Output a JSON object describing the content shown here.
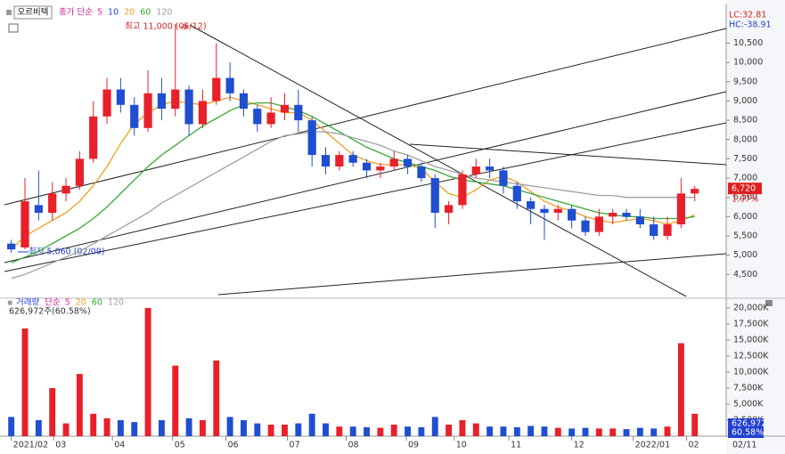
{
  "chart_data": [
    {
      "type": "candlestick",
      "title": "오르비텍",
      "legend_prefix": "종가 단순",
      "legend": [
        {
          "name": "5",
          "color": "#e0309a"
        },
        {
          "name": "10",
          "color": "#2040d0"
        }
      ],
      "x": [
        0,
        1,
        2,
        3,
        4,
        5,
        6,
        7,
        8,
        9,
        10,
        11,
        12,
        13,
        14,
        15,
        16,
        17,
        18,
        19,
        20,
        21,
        22,
        23,
        24,
        25,
        26,
        27,
        28,
        29,
        30,
        31,
        32,
        33,
        34,
        35,
        36,
        37,
        38,
        39,
        40,
        41,
        42,
        43,
        44,
        45,
        46,
        47,
        48,
        49,
        50
      ],
      "open": [
        5300,
        5200,
        6300,
        6100,
        6600,
        6800,
        7500,
        8600,
        9300,
        8900,
        8300,
        9200,
        8800,
        9300,
        8400,
        9000,
        9600,
        9200,
        8800,
        8400,
        8700,
        8900,
        8500,
        7600,
        7300,
        7600,
        7400,
        7200,
        7300,
        7500,
        7300,
        7000,
        6100,
        6300,
        7100,
        7300,
        7200,
        6800,
        6400,
        6200,
        6100,
        6200,
        5900,
        5600,
        6000,
        6100,
        6000,
        5800,
        5500,
        5800,
        6600
      ],
      "high": [
        5400,
        7000,
        7200,
        6900,
        7000,
        7700,
        9000,
        9600,
        9600,
        9100,
        9800,
        9600,
        11000,
        9400,
        9300,
        10500,
        10000,
        9300,
        8900,
        9100,
        9200,
        9300,
        8600,
        7800,
        7700,
        7700,
        7500,
        7400,
        7700,
        7600,
        7400,
        7100,
        6400,
        7200,
        7500,
        7500,
        7300,
        6900,
        6500,
        6300,
        6300,
        6300,
        6000,
        6200,
        6200,
        6200,
        6200,
        6000,
        6000,
        7000,
        6800
      ],
      "low": [
        5060,
        5150,
        5900,
        5900,
        6400,
        6700,
        7400,
        8400,
        8700,
        8100,
        8200,
        8500,
        8600,
        8100,
        8300,
        8900,
        9000,
        8600,
        8200,
        8300,
        8500,
        8200,
        7300,
        7100,
        7200,
        7300,
        7000,
        7000,
        7200,
        7100,
        6900,
        5700,
        5800,
        6200,
        7000,
        7000,
        6600,
        6200,
        5800,
        5400,
        5900,
        5700,
        5500,
        5500,
        5800,
        5900,
        5700,
        5400,
        5400,
        5700,
        6400
      ],
      "close": [
        5150,
        6400,
        6100,
        6600,
        6800,
        7500,
        8600,
        9300,
        8900,
        8300,
        9200,
        8800,
        9300,
        8400,
        9000,
        9600,
        9200,
        8800,
        8400,
        8700,
        8900,
        8500,
        7600,
        7300,
        7600,
        7400,
        7200,
        7300,
        7500,
        7300,
        7000,
        6100,
        6300,
        7100,
        7300,
        7200,
        6800,
        6400,
        6200,
        6100,
        6200,
        5900,
        5600,
        6000,
        6100,
        6000,
        5800,
        5500,
        5800,
        6600,
        6720
      ],
      "up_color": "#e8202a",
      "down_color": "#1f4fd0",
      "series": [
        {
          "name": "20",
          "color": "#f0a020",
          "values": [
            5150,
            5500,
            5700,
            5900,
            6100,
            6400,
            6800,
            7300,
            7900,
            8400,
            8700,
            8900,
            9000,
            8950,
            8900,
            9000,
            9100,
            9000,
            8900,
            8800,
            8700,
            8700,
            8500,
            8200,
            7900,
            7600,
            7450,
            7350,
            7350,
            7350,
            7250,
            6900,
            6600,
            6500,
            6700,
            6950,
            7050,
            6900,
            6650,
            6400,
            6250,
            6150,
            6000,
            5900,
            5850,
            5900,
            5950,
            5900,
            5800,
            5900,
            6050
          ]
        },
        {
          "name": "60",
          "color": "#3aa83a",
          "values": [
            4800,
            4950,
            5100,
            5300,
            5500,
            5700,
            5950,
            6250,
            6600,
            6950,
            7300,
            7600,
            7850,
            8100,
            8350,
            8550,
            8750,
            8900,
            8950,
            8950,
            8850,
            8750,
            8600,
            8400,
            8200,
            8000,
            7800,
            7650,
            7500,
            7400,
            7300,
            7200,
            7050,
            6950,
            6900,
            6850,
            6800,
            6700,
            6600,
            6500,
            6400,
            6300,
            6200,
            6100,
            6050,
            6000,
            6000,
            5950,
            5950,
            5950,
            6000
          ]
        },
        {
          "name": "120",
          "color": "#a0a0a0",
          "values": [
            4400,
            4500,
            4650,
            4800,
            4950,
            5100,
            5300,
            5500,
            5700,
            5900,
            6100,
            6350,
            6550,
            6750,
            6950,
            7150,
            7350,
            7550,
            7750,
            7950,
            8100,
            8150,
            8200,
            8200,
            8150,
            8050,
            7950,
            7850,
            7700,
            7600,
            7450,
            7300,
            7200,
            7100,
            7000,
            6950,
            6900,
            6850,
            6800,
            6750,
            6700,
            6650,
            6600,
            6550,
            6550,
            6500,
            6500,
            6500,
            6500,
            6500,
            6500
          ]
        }
      ],
      "xlim": [
        -0.5,
        52.3
      ],
      "ylim": [
        3930,
        11390
      ],
      "yticks": [
        {
          "value": 4500,
          "label": "4,500"
        },
        {
          "value": 5000,
          "label": "5,000"
        },
        {
          "value": 5500,
          "label": "5,500"
        },
        {
          "value": 6000,
          "label": "6,000"
        },
        {
          "value": 6500,
          "label": "6,500"
        },
        {
          "value": 7000,
          "label": "7,000"
        },
        {
          "value": 7500,
          "label": "7,500"
        },
        {
          "value": 8000,
          "label": "8,000"
        },
        {
          "value": 8500,
          "label": "8,500"
        },
        {
          "value": 9000,
          "label": "9,000"
        },
        {
          "value": 9500,
          "label": "9,500"
        },
        {
          "value": 10000,
          "label": "10,000"
        },
        {
          "value": 10500,
          "label": "10,500"
        }
      ],
      "high_label": "최고 11,000 (05/12)",
      "low_label": "최저 5,060 (02/09)",
      "lc": "LC:32.81",
      "hc": "HC:-38.91",
      "last_price": {
        "value": 6720,
        "label": "6,720"
      },
      "change": "1.97%"
    },
    {
      "type": "bar",
      "title": "거래량",
      "legend_prefix": "단순",
      "legend": [
        {
          "name": "5",
          "color": "#e0309a"
        },
        {
          "name": "20",
          "color": "#f0a020"
        },
        {
          "name": "60",
          "color": "#3aa83a"
        },
        {
          "name": "120",
          "color": "#a0a0a0"
        }
      ],
      "subtitle": "626,972주(60.58%)",
      "x": [
        0,
        1,
        2,
        3,
        4,
        5,
        6,
        7,
        8,
        9,
        10,
        11,
        12,
        13,
        14,
        15,
        16,
        17,
        18,
        19,
        20,
        21,
        22,
        23,
        24,
        25,
        26,
        27,
        28,
        29,
        30,
        31,
        32,
        33,
        34,
        35,
        36,
        37,
        38,
        39,
        40,
        41,
        42,
        43,
        44,
        45,
        46,
        47,
        48,
        49,
        50
      ],
      "values": [
        3000,
        16800,
        2500,
        7500,
        2000,
        9700,
        3500,
        2800,
        2500,
        2200,
        20000,
        2500,
        11000,
        2800,
        2500,
        11800,
        3000,
        2500,
        2000,
        1800,
        1800,
        2000,
        3500,
        2000,
        1500,
        1500,
        1400,
        1300,
        1800,
        1500,
        1400,
        3000,
        1800,
        2500,
        2000,
        1500,
        1500,
        1400,
        1600,
        1500,
        1300,
        1200,
        1300,
        1200,
        1200,
        1100,
        1300,
        1200,
        1500,
        14500,
        3500
      ],
      "xlim": [
        -0.5,
        52.3
      ],
      "ylim": [
        0,
        21100
      ],
      "yticks": [
        {
          "value": 2500,
          "label": "2,500K"
        },
        {
          "value": 5000,
          "label": "5,000K"
        },
        {
          "value": 7500,
          "label": "7,500K"
        },
        {
          "value": 10000,
          "label": "10,000K"
        },
        {
          "value": 12500,
          "label": "12,500K"
        },
        {
          "value": 15000,
          "label": "15,000K"
        },
        {
          "value": 17500,
          "label": "17,500K"
        },
        {
          "value": 20000,
          "label": "20,000K"
        }
      ],
      "xticks": [
        {
          "value": 0,
          "label": "2021/02"
        },
        {
          "value": 3.1,
          "label": "03"
        },
        {
          "value": 7.4,
          "label": "04"
        },
        {
          "value": 11.8,
          "label": "05"
        },
        {
          "value": 15.7,
          "label": "06"
        },
        {
          "value": 20.2,
          "label": "07"
        },
        {
          "value": 24.5,
          "label": "08"
        },
        {
          "value": 28.9,
          "label": "09"
        },
        {
          "value": 32.4,
          "label": "10"
        },
        {
          "value": 36.4,
          "label": "11"
        },
        {
          "value": 41.0,
          "label": "12"
        },
        {
          "value": 45.5,
          "label": "2022/01"
        },
        {
          "value": 49.4,
          "label": "02"
        }
      ],
      "last_volume": "626,972",
      "last_ratio": "60.58%",
      "date_label": "02/11"
    }
  ]
}
